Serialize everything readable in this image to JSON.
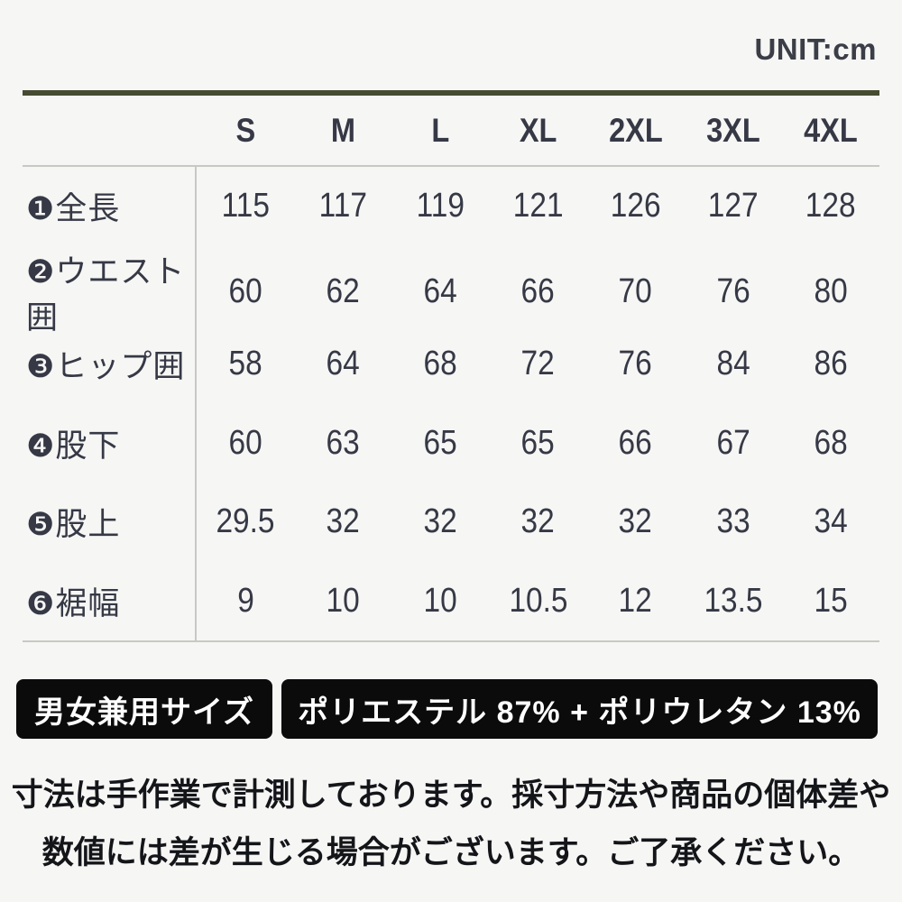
{
  "page": {
    "unit_label": "UNIT:cm",
    "background_color": "#f6f6f5",
    "accent_line_color": "#464b32",
    "divider_color": "#c9c9c3",
    "text_color": "#363945",
    "badge_bg_color": "#0b0b0b",
    "badge_text_color": "#ffffff"
  },
  "table": {
    "columns": [
      "S",
      "M",
      "L",
      "XL",
      "2XL",
      "3XL",
      "4XL"
    ],
    "rows": [
      {
        "label": "❶全長",
        "values": [
          "115",
          "117",
          "119",
          "121",
          "126",
          "127",
          "128"
        ]
      },
      {
        "label": "❷ウエスト囲",
        "values": [
          "60",
          "62",
          "64",
          "66",
          "70",
          "76",
          "80"
        ]
      },
      {
        "label": "❸ヒップ囲",
        "values": [
          "58",
          "64",
          "68",
          "72",
          "76",
          "84",
          "86"
        ]
      },
      {
        "label": "❹股下",
        "values": [
          "60",
          "63",
          "65",
          "65",
          "66",
          "67",
          "68"
        ]
      },
      {
        "label": "❺股上",
        "values": [
          "29.5",
          "32",
          "32",
          "32",
          "32",
          "33",
          "34"
        ]
      },
      {
        "label": "❻裾幅",
        "values": [
          "9",
          "10",
          "10",
          "10.5",
          "12",
          "13.5",
          "15"
        ]
      }
    ]
  },
  "badges": {
    "unisex": "男女兼用サイズ",
    "material": "ポリエステル 87% + ポリウレタン 13%"
  },
  "footer": {
    "line1": "寸法は手作業で計測しております。採寸方法や商品の個体差や",
    "line2": "数値には差が生じる場合がございます。ご了承ください。"
  },
  "chart_data": {
    "type": "table",
    "title": "",
    "unit_label": "UNIT:cm",
    "categories": [
      "S",
      "M",
      "L",
      "XL",
      "2XL",
      "3XL",
      "4XL"
    ],
    "series": [
      {
        "name": "全長",
        "values": [
          115,
          117,
          119,
          121,
          126,
          127,
          128
        ]
      },
      {
        "name": "ウエスト囲",
        "values": [
          60,
          62,
          64,
          66,
          70,
          76,
          80
        ]
      },
      {
        "name": "ヒップ囲",
        "values": [
          58,
          64,
          68,
          72,
          76,
          84,
          86
        ]
      },
      {
        "name": "股下",
        "values": [
          60,
          63,
          65,
          65,
          66,
          67,
          68
        ]
      },
      {
        "name": "股上",
        "values": [
          29.5,
          32,
          32,
          32,
          32,
          33,
          34
        ]
      },
      {
        "name": "裾幅",
        "values": [
          9,
          10,
          10,
          10.5,
          12,
          13.5,
          15
        ]
      }
    ],
    "annotations": [
      "男女兼用サイズ",
      "ポリエステル 87% + ポリウレタン 13%"
    ]
  }
}
